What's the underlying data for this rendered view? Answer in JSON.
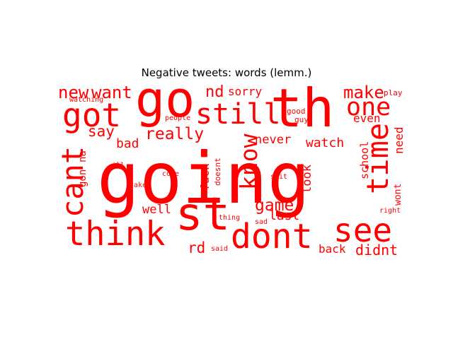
{
  "chart_data": {
    "type": "wordcloud",
    "title": "Negative tweets: words (lemm.)",
    "color": "#ff0000",
    "words": [
      {
        "text": "going",
        "weight": 100
      },
      {
        "text": "th",
        "weight": 62
      },
      {
        "text": "go",
        "weight": 52
      },
      {
        "text": "st",
        "weight": 46
      },
      {
        "text": "dont",
        "weight": 34
      },
      {
        "text": "think",
        "weight": 34
      },
      {
        "text": "cant",
        "weight": 32
      },
      {
        "text": "see",
        "weight": 30
      },
      {
        "text": "got",
        "weight": 30
      },
      {
        "text": "time",
        "weight": 28
      },
      {
        "text": "still",
        "weight": 27
      },
      {
        "text": "one",
        "weight": 26
      },
      {
        "text": "know",
        "weight": 25
      },
      {
        "text": "new",
        "weight": 18
      },
      {
        "text": "want",
        "weight": 18
      },
      {
        "text": "make",
        "weight": 17
      },
      {
        "text": "really",
        "weight": 16
      },
      {
        "text": "game",
        "weight": 16
      },
      {
        "text": "nd",
        "weight": 15
      },
      {
        "text": "say",
        "weight": 15
      },
      {
        "text": "rd",
        "weight": 15
      },
      {
        "text": "didnt",
        "weight": 14
      },
      {
        "text": "last",
        "weight": 14
      },
      {
        "text": "watch",
        "weight": 13
      },
      {
        "text": "bad",
        "weight": 13
      },
      {
        "text": "never",
        "weight": 12
      },
      {
        "text": "look",
        "weight": 12
      },
      {
        "text": "well",
        "weight": 12
      },
      {
        "text": "back",
        "weight": 12
      },
      {
        "text": "sorry",
        "weight": 12
      },
      {
        "text": "fuck",
        "weight": 11
      },
      {
        "text": "even",
        "weight": 11
      },
      {
        "text": "need",
        "weight": 11
      },
      {
        "text": "school",
        "weight": 10
      },
      {
        "text": "gon",
        "weight": 9
      },
      {
        "text": "na",
        "weight": 9
      },
      {
        "text": "wont",
        "weight": 9
      },
      {
        "text": "doesnt",
        "weight": 7
      },
      {
        "text": "good",
        "weight": 6
      },
      {
        "text": "guy",
        "weight": 6
      },
      {
        "text": "play",
        "weight": 6
      },
      {
        "text": "watching",
        "weight": 6
      },
      {
        "text": "people",
        "weight": 6
      },
      {
        "text": "ill",
        "weight": 6
      },
      {
        "text": "come",
        "weight": 6
      },
      {
        "text": "take",
        "weight": 6
      },
      {
        "text": "shit",
        "weight": 6
      },
      {
        "text": "thing",
        "weight": 6
      },
      {
        "text": "sad",
        "weight": 6
      },
      {
        "text": "said",
        "weight": 6
      },
      {
        "text": "right",
        "weight": 6
      }
    ]
  }
}
